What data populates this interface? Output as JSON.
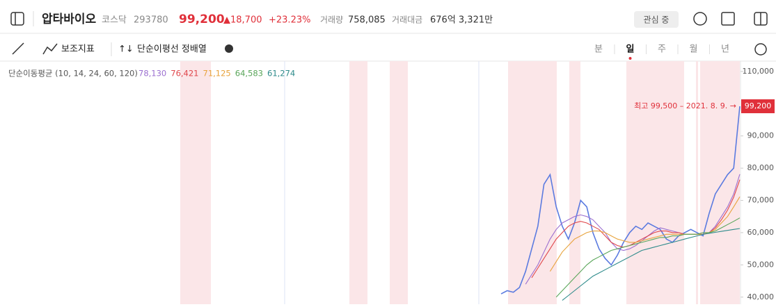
{
  "header": {
    "name": "압타바이오",
    "market": "코스닥",
    "code": "293780",
    "price": "99,200",
    "change": "▲18,700",
    "change_pct": "+23.23%",
    "volume_label": "거래량",
    "volume": "758,085",
    "amount_label": "거래대금",
    "amount": "676억 3,321만",
    "watch": "관심 중"
  },
  "toolbar": {
    "indicator": "보조지표",
    "signal": "단순이평선 정배열",
    "periods": [
      "분",
      "일",
      "주",
      "월",
      "년"
    ]
  },
  "chart_data": {
    "type": "line",
    "ma_label": "단순이동평균 (10, 14, 24, 60, 120)",
    "ylim": [
      37800,
      113200
    ],
    "yticks": [
      {
        "value": 110000,
        "label": "110,000"
      },
      {
        "value": 90000,
        "label": "90,000"
      },
      {
        "value": 80000,
        "label": "80,000"
      },
      {
        "value": 70000,
        "label": "70,000"
      },
      {
        "value": 60000,
        "label": "60,000"
      },
      {
        "value": 50000,
        "label": "50,000"
      },
      {
        "value": 40000,
        "label": "40,000"
      }
    ],
    "current": {
      "value": 99200,
      "label": "99,200"
    },
    "annotation": "최고 99,500 – 2021. 8. 9. →",
    "series": [
      {
        "color": "#5b7be0",
        "values": [
          41000,
          42000,
          41500,
          43000,
          48000,
          55000,
          62000,
          75000,
          78000,
          68000,
          62000,
          58000,
          63000,
          70000,
          68000,
          60000,
          55000,
          52000,
          50000,
          53000,
          57000,
          60000,
          62000,
          61000,
          63000,
          62000,
          61000,
          58000,
          57000,
          59000,
          60000,
          61000,
          60000,
          59000,
          66000,
          72000,
          75000,
          78000,
          80000,
          99200
        ]
      },
      {
        "color": "#9b6fd0",
        "value_label": "78,130",
        "values": [
          null,
          null,
          null,
          null,
          44000,
          47000,
          50000,
          54000,
          58000,
          61000,
          63000,
          64000,
          65000,
          65500,
          65000,
          64000,
          62000,
          60000,
          57000,
          55000,
          54500,
          55000,
          56000,
          57500,
          59000,
          60500,
          61500,
          61000,
          60500,
          60000,
          59500,
          59500,
          59500,
          59500,
          60000,
          62000,
          65000,
          68000,
          72000,
          78130
        ]
      },
      {
        "color": "#e0474c",
        "value_label": "76,421",
        "values": [
          null,
          null,
          null,
          null,
          null,
          46000,
          49000,
          52000,
          55000,
          58000,
          60000,
          62000,
          63000,
          63500,
          63000,
          62000,
          61000,
          59000,
          57000,
          56000,
          55500,
          56000,
          57000,
          58000,
          59000,
          60000,
          60500,
          60500,
          60000,
          60000,
          59500,
          59500,
          59500,
          59500,
          60000,
          61500,
          64000,
          67000,
          71000,
          76421
        ]
      },
      {
        "color": "#e8a33c",
        "value_label": "71,125",
        "values": [
          null,
          null,
          null,
          null,
          null,
          null,
          null,
          null,
          48000,
          51000,
          54000,
          56000,
          58000,
          59000,
          60000,
          60500,
          60500,
          60000,
          59000,
          58000,
          57500,
          57000,
          57000,
          57500,
          58000,
          58500,
          59000,
          59500,
          59500,
          59500,
          59500,
          59500,
          59500,
          59500,
          60000,
          61000,
          63000,
          65000,
          68000,
          71125
        ]
      },
      {
        "color": "#5aa65a",
        "value_label": "64,583",
        "values": [
          null,
          null,
          null,
          null,
          null,
          null,
          null,
          null,
          null,
          40000,
          42000,
          44000,
          46000,
          48000,
          50000,
          51500,
          52500,
          53500,
          54500,
          55000,
          55500,
          56000,
          56500,
          57000,
          57500,
          58000,
          58500,
          58500,
          59000,
          59000,
          59500,
          59500,
          59500,
          60000,
          60000,
          60500,
          61500,
          62500,
          63500,
          64583
        ]
      },
      {
        "color": "#2e8b8b",
        "value_label": "61,274",
        "values": [
          null,
          null,
          null,
          null,
          null,
          null,
          null,
          null,
          null,
          null,
          39000,
          40500,
          42000,
          43500,
          45000,
          46500,
          47500,
          48500,
          49500,
          50500,
          51500,
          52500,
          53500,
          54500,
          55000,
          55500,
          56000,
          56500,
          57000,
          57500,
          58000,
          58500,
          59000,
          59500,
          59800,
          60100,
          60400,
          60700,
          61000,
          61274
        ]
      }
    ]
  }
}
